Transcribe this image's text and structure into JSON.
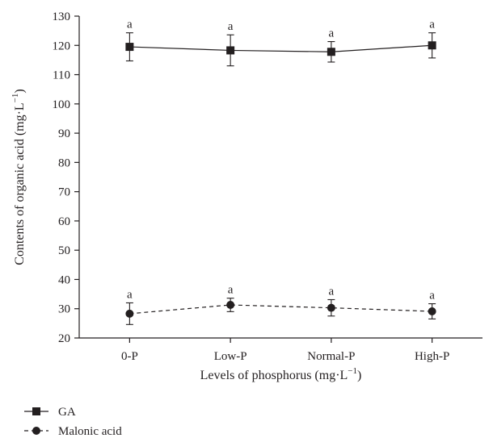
{
  "chart_data": {
    "type": "line",
    "xlabel": "Levels of phosphorus (mg·L",
    "xlabel_sup": "−1",
    "xlabel_end": ")",
    "ylabel": "Contents of organic acid (mg·L",
    "ylabel_sup": "−1",
    "ylabel_end": ")",
    "categories": [
      "0-P",
      "Low-P",
      "Normal-P",
      "High-P"
    ],
    "ylim": [
      20,
      130
    ],
    "yticks": [
      20,
      30,
      40,
      50,
      60,
      70,
      80,
      90,
      100,
      110,
      120,
      130
    ],
    "grid": false,
    "legend_position": "bottom-left",
    "series": [
      {
        "name": "GA",
        "values": [
          119.5,
          118.3,
          117.8,
          120.0
        ],
        "errors": [
          4.8,
          5.3,
          3.5,
          4.3
        ],
        "labels": [
          "a",
          "a",
          "a",
          "a"
        ],
        "marker": "square",
        "line": "solid"
      },
      {
        "name": "Malonic acid",
        "values": [
          28.3,
          31.3,
          30.3,
          29.1
        ],
        "errors": [
          3.7,
          2.3,
          2.8,
          2.6
        ],
        "labels": [
          "a",
          "a",
          "a",
          "a"
        ],
        "marker": "circle",
        "line": "dashed"
      }
    ]
  }
}
